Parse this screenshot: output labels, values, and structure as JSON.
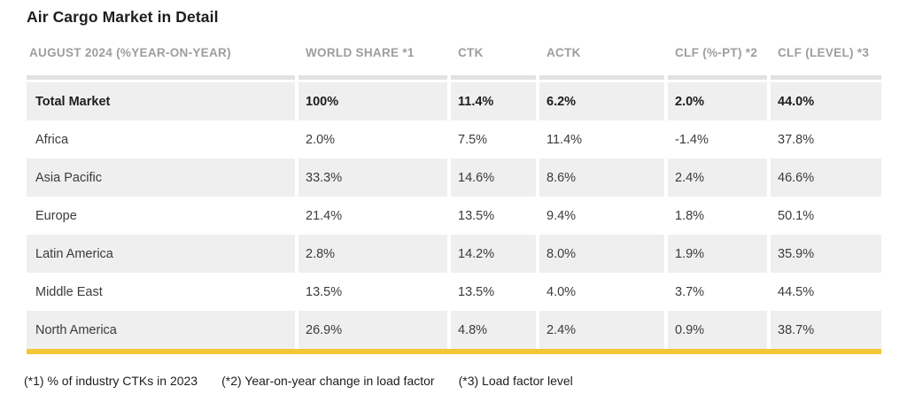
{
  "page": {
    "title": "Air Cargo Market in Detail",
    "footnotes": [
      "(*1) % of industry CTKs in 2023",
      "(*2) Year-on-year change in load factor",
      "(*3) Load factor level"
    ]
  },
  "table": {
    "header": [
      "AUGUST 2024 (%YEAR-ON-YEAR)",
      "WORLD SHARE *1",
      "CTK",
      "ACTK",
      "CLF (%-PT) *2",
      "CLF (LEVEL) *3"
    ],
    "rows": [
      {
        "label": "Total Market",
        "world_share": "100%",
        "ctk": "11.4%",
        "actk": "6.2%",
        "clf_pt": "2.0%",
        "clf_level": "44.0%",
        "bold": true,
        "shaded": true
      },
      {
        "label": "Africa",
        "world_share": "2.0%",
        "ctk": "7.5%",
        "actk": "11.4%",
        "clf_pt": "-1.4%",
        "clf_level": "37.8%",
        "bold": false,
        "shaded": false
      },
      {
        "label": "Asia Pacific",
        "world_share": "33.3%",
        "ctk": "14.6%",
        "actk": "8.6%",
        "clf_pt": "2.4%",
        "clf_level": "46.6%",
        "bold": false,
        "shaded": true
      },
      {
        "label": "Europe",
        "world_share": "21.4%",
        "ctk": "13.5%",
        "actk": "9.4%",
        "clf_pt": "1.8%",
        "clf_level": "50.1%",
        "bold": false,
        "shaded": false
      },
      {
        "label": "Latin America",
        "world_share": "2.8%",
        "ctk": "14.2%",
        "actk": "8.0%",
        "clf_pt": "1.9%",
        "clf_level": "35.9%",
        "bold": false,
        "shaded": true
      },
      {
        "label": "Middle East",
        "world_share": "13.5%",
        "ctk": "13.5%",
        "actk": "4.0%",
        "clf_pt": "3.7%",
        "clf_level": "44.5%",
        "bold": false,
        "shaded": false
      },
      {
        "label": "North America",
        "world_share": "26.9%",
        "ctk": "4.8%",
        "actk": "2.4%",
        "clf_pt": "0.9%",
        "clf_level": "38.7%",
        "bold": false,
        "shaded": true
      }
    ]
  },
  "colors": {
    "accent_yellow": "#F2C637",
    "row_shade": "#F0EFEF",
    "top_divider_gray": "#E3E2E2",
    "header_text_gray": "#9D9D9C",
    "title_text": "#1D1D1B",
    "body_text": "#3B3B3A"
  }
}
